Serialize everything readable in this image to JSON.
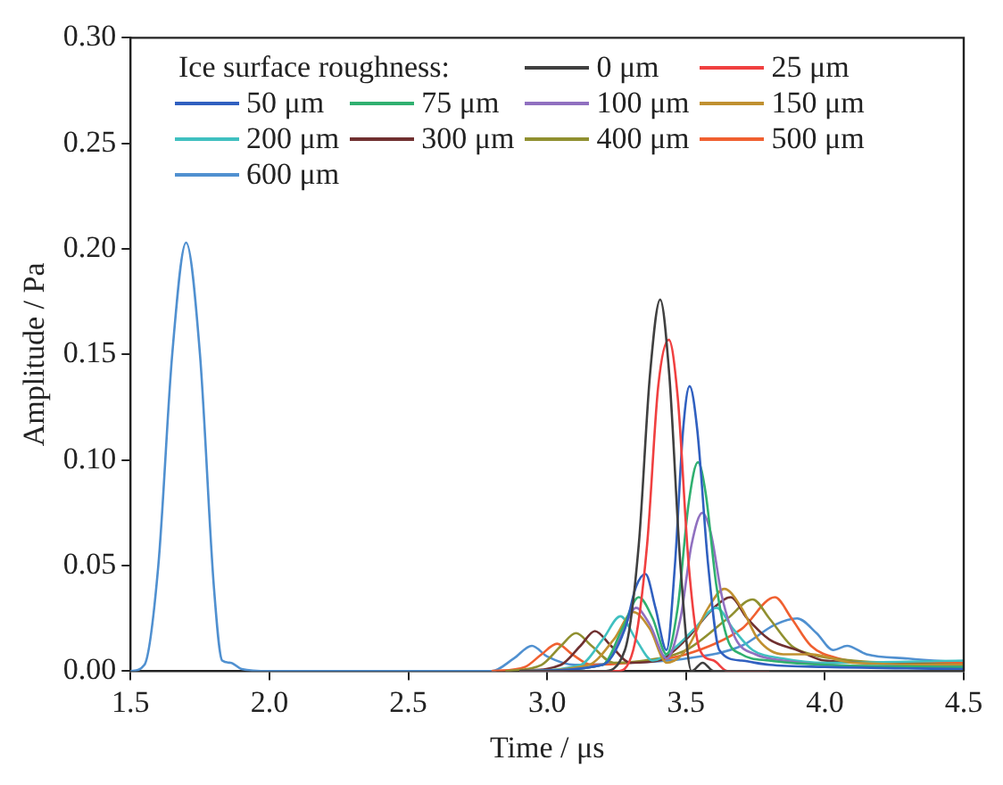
{
  "chart_data": {
    "type": "line",
    "xlabel": "Time / μs",
    "ylabel": "Amplitude / Pa",
    "legend_title": "Ice surface roughness:",
    "legend": "top",
    "grid": false,
    "marker": "none",
    "line_style": "solid",
    "xlim": [
      1.5,
      4.5
    ],
    "xticks": [
      {
        "value": 1.5,
        "label": "1.5"
      },
      {
        "value": 2.0,
        "label": "2.0"
      },
      {
        "value": 2.5,
        "label": "2.5"
      },
      {
        "value": 3.0,
        "label": "3.0"
      },
      {
        "value": 3.5,
        "label": "3.5"
      },
      {
        "value": 4.0,
        "label": "4.0"
      },
      {
        "value": 4.5,
        "label": "4.5"
      }
    ],
    "ylim": [
      0,
      0.3
    ],
    "yticks": [
      {
        "value": 0,
        "label": "0.00"
      },
      {
        "value": 0.05,
        "label": "0.05"
      },
      {
        "value": 0.1,
        "label": "0.10"
      },
      {
        "value": 0.15,
        "label": "0.15"
      },
      {
        "value": 0.2,
        "label": "0.20"
      },
      {
        "value": 0.25,
        "label": "0.25"
      },
      {
        "value": 0.3,
        "label": "0.30"
      }
    ],
    "series": [
      {
        "name": "0 μm",
        "color": "#404040",
        "x": [
          2.9,
          3.2,
          3.28,
          3.33,
          3.37,
          3.407,
          3.44,
          3.48,
          3.52,
          3.56,
          3.6,
          3.8,
          4.0,
          4.5
        ],
        "values": [
          0,
          0,
          0.01,
          0.06,
          0.14,
          0.176,
          0.14,
          0.05,
          0,
          0.004,
          0,
          0,
          0,
          0
        ]
      },
      {
        "name": "25 μm",
        "color": "#f04040",
        "x": [
          2.9,
          3.25,
          3.31,
          3.36,
          3.4,
          3.438,
          3.47,
          3.51,
          3.55,
          3.6,
          3.65,
          3.8
        ],
        "values": [
          0,
          0,
          0.01,
          0.06,
          0.135,
          0.157,
          0.13,
          0.05,
          0.01,
          0.005,
          0,
          0
        ]
      },
      {
        "name": "50 μm",
        "color": "#3060c0",
        "x": [
          2.9,
          3.2,
          3.28,
          3.32,
          3.354,
          3.39,
          3.43,
          3.46,
          3.49,
          3.513,
          3.54,
          3.58,
          3.62,
          3.7,
          3.8,
          4.0,
          4.5
        ],
        "values": [
          0,
          0.003,
          0.02,
          0.04,
          0.046,
          0.03,
          0.01,
          0.05,
          0.115,
          0.135,
          0.115,
          0.05,
          0.01,
          0.005,
          0.003,
          0.002,
          0.001
        ]
      },
      {
        "name": "75 μm",
        "color": "#30b070",
        "x": [
          2.9,
          3.2,
          3.27,
          3.33,
          3.38,
          3.43,
          3.47,
          3.51,
          3.543,
          3.57,
          3.61,
          3.65,
          3.7,
          3.8,
          4.0,
          4.5
        ],
        "values": [
          0,
          0.003,
          0.02,
          0.035,
          0.025,
          0.008,
          0.03,
          0.08,
          0.099,
          0.085,
          0.04,
          0.015,
          0.008,
          0.005,
          0.003,
          0.002
        ]
      },
      {
        "name": "100 μm",
        "color": "#9070c0",
        "x": [
          2.9,
          3.2,
          3.26,
          3.32,
          3.37,
          3.43,
          3.48,
          3.52,
          3.559,
          3.59,
          3.63,
          3.68,
          3.75,
          3.85,
          4.0,
          4.5
        ],
        "values": [
          0,
          0.003,
          0.015,
          0.03,
          0.022,
          0.006,
          0.025,
          0.06,
          0.075,
          0.065,
          0.035,
          0.015,
          0.008,
          0.005,
          0.003,
          0.002
        ]
      },
      {
        "name": "150 μm",
        "color": "#c09030",
        "x": [
          2.9,
          3.15,
          3.24,
          3.31,
          3.37,
          3.43,
          3.5,
          3.58,
          3.638,
          3.7,
          3.76,
          3.85,
          3.95,
          4.1,
          4.5
        ],
        "values": [
          0,
          0.003,
          0.015,
          0.028,
          0.02,
          0.004,
          0.01,
          0.03,
          0.039,
          0.03,
          0.015,
          0.008,
          0.008,
          0.004,
          0.003
        ]
      },
      {
        "name": "200 μm",
        "color": "#40c0c0",
        "x": [
          2.9,
          3.12,
          3.2,
          3.264,
          3.32,
          3.38,
          3.45,
          3.53,
          3.61,
          3.67,
          3.74,
          3.85,
          4.0,
          4.5
        ],
        "values": [
          0,
          0.003,
          0.015,
          0.026,
          0.015,
          0.005,
          0.01,
          0.02,
          0.03,
          0.02,
          0.01,
          0.006,
          0.004,
          0.005
        ]
      },
      {
        "name": "300 μm",
        "color": "#703030",
        "x": [
          2.9,
          3.05,
          3.12,
          3.172,
          3.23,
          3.3,
          3.4,
          3.5,
          3.6,
          3.661,
          3.72,
          3.8,
          3.9,
          4.0,
          4.5
        ],
        "values": [
          0,
          0.003,
          0.012,
          0.019,
          0.012,
          0.004,
          0.005,
          0.015,
          0.03,
          0.035,
          0.025,
          0.015,
          0.01,
          0.005,
          0.003
        ]
      },
      {
        "name": "400 μm",
        "color": "#909030",
        "x": [
          2.85,
          2.98,
          3.05,
          3.104,
          3.16,
          3.24,
          3.35,
          3.5,
          3.65,
          3.74,
          3.8,
          3.88,
          3.95,
          4.1,
          4.5
        ],
        "values": [
          0,
          0.003,
          0.012,
          0.018,
          0.012,
          0.004,
          0.005,
          0.01,
          0.025,
          0.034,
          0.025,
          0.012,
          0.008,
          0.005,
          0.003
        ]
      },
      {
        "name": "500 μm",
        "color": "#f06030",
        "x": [
          2.8,
          2.92,
          2.98,
          3.036,
          3.09,
          3.16,
          3.3,
          3.5,
          3.7,
          3.82,
          3.88,
          3.95,
          4.05,
          4.2,
          4.5
        ],
        "values": [
          0,
          0.002,
          0.008,
          0.013,
          0.008,
          0.003,
          0.004,
          0.008,
          0.02,
          0.035,
          0.025,
          0.012,
          0.006,
          0.004,
          0.004
        ]
      },
      {
        "name": "600 μm",
        "color": "#5090d0",
        "x": [
          1.5,
          1.55,
          1.6,
          1.65,
          1.7,
          1.75,
          1.8,
          1.83,
          1.86,
          1.9,
          2.0,
          2.8,
          2.88,
          2.945,
          3.0,
          3.1,
          3.3,
          3.5,
          3.7,
          3.82,
          3.9,
          3.97,
          4.03,
          4.08,
          4.15,
          4.3,
          4.5
        ],
        "values": [
          0,
          0.003,
          0.05,
          0.15,
          0.203,
          0.15,
          0.04,
          0.005,
          0.004,
          0.001,
          0,
          0,
          0.006,
          0.012,
          0.007,
          0.003,
          0.004,
          0.006,
          0.012,
          0.022,
          0.025,
          0.018,
          0.01,
          0.012,
          0.008,
          0.006,
          0.004
        ]
      }
    ]
  }
}
